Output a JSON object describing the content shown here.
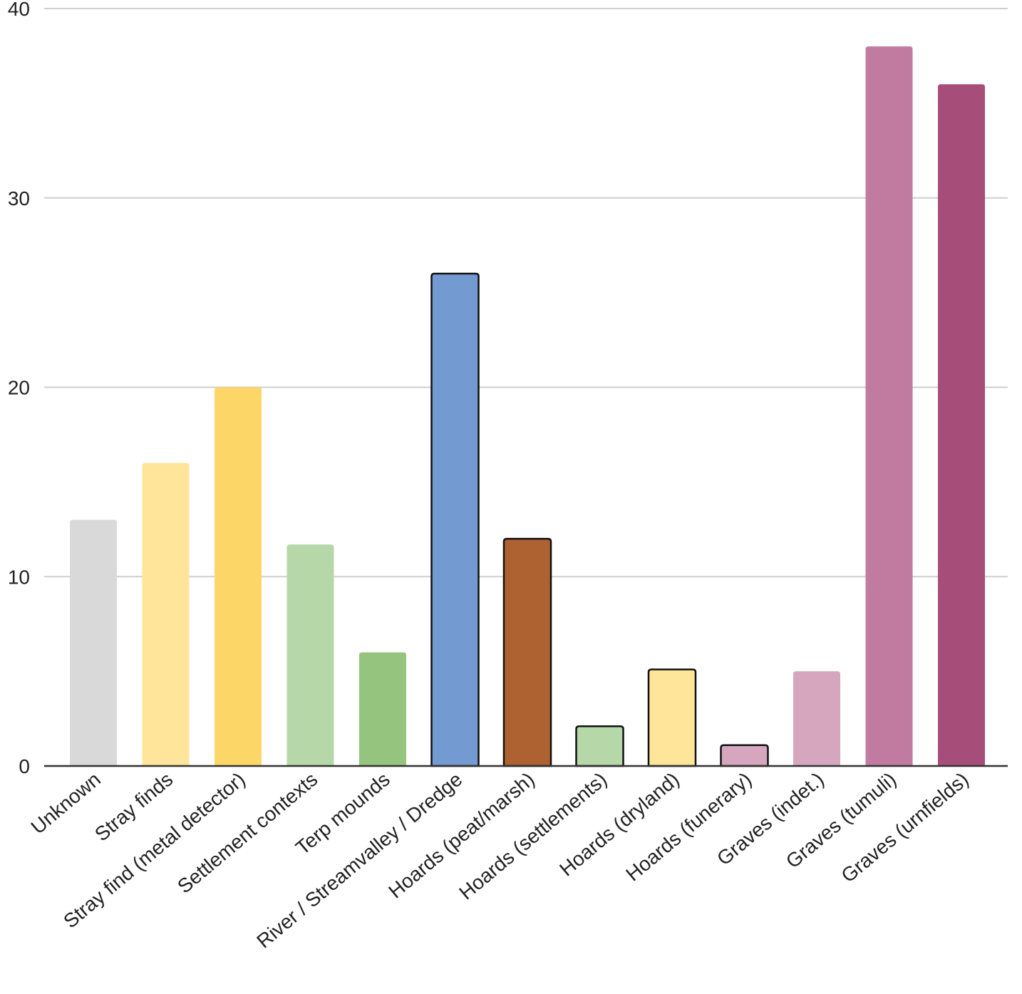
{
  "chart_data": {
    "type": "bar",
    "title": "",
    "xlabel": "",
    "ylabel": "",
    "ylim": [
      0,
      40
    ],
    "yticks": [
      0,
      10,
      20,
      30,
      40
    ],
    "grid": true,
    "categories": [
      "Unknown",
      "Stray finds",
      "Stray find (metal detector)",
      "Settlement contexts",
      "Terp mounds",
      "River / Streamvalley / Dredge",
      "Hoards (peat/marsh)",
      "Hoards (settlements)",
      "Hoards (dryland)",
      "Hoards (funerary)",
      "Graves (indet.)",
      "Graves (tumuli)",
      "Graves (urnfields)"
    ],
    "values": [
      13,
      16,
      20,
      11.7,
      6,
      26,
      12,
      2.1,
      5.1,
      1.1,
      5,
      38,
      36
    ],
    "colors": [
      "#d9d9d9",
      "#fee599",
      "#fcd767",
      "#b6d7a8",
      "#94c47d",
      "#739bd1",
      "#ae6232",
      "#b6d7a8",
      "#fee599",
      "#d5a6bd",
      "#d5a6bd",
      "#c27ba0",
      "#a64d79"
    ],
    "outlined": [
      false,
      false,
      false,
      false,
      false,
      true,
      true,
      true,
      true,
      true,
      false,
      false,
      false
    ]
  }
}
